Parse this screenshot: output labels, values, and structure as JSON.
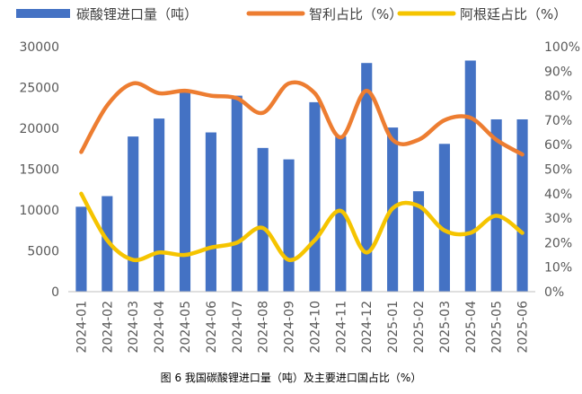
{
  "chart_data": {
    "type": "bar+line",
    "title": "",
    "caption": "图 6 我国碳酸锂进口量（吨）及主要进口国占比（%）",
    "categories": [
      "2024-01",
      "2024-02",
      "2024-03",
      "2024-04",
      "2024-05",
      "2024-06",
      "2024-07",
      "2024-08",
      "2024-09",
      "2024-10",
      "2024-11",
      "2024-12",
      "2025-01",
      "2025-02",
      "2025-03",
      "2025-04",
      "2025-05",
      "2025-06"
    ],
    "series": [
      {
        "name": "碳酸锂进口量（吨）",
        "type": "bar",
        "axis": "left",
        "color": "#4472C4",
        "values": [
          10400,
          11700,
          19000,
          21200,
          24600,
          19500,
          24000,
          17600,
          16200,
          23200,
          19000,
          28000,
          20100,
          12300,
          18100,
          28300,
          21100,
          21100
        ]
      },
      {
        "name": "智利占比（%）",
        "type": "line",
        "axis": "right",
        "color": "#ED7D31",
        "values": [
          57,
          76,
          85,
          81,
          82,
          80,
          79,
          73,
          85,
          81,
          63,
          82,
          62,
          62,
          70,
          71,
          62,
          56
        ]
      },
      {
        "name": "阿根廷占比（%）",
        "type": "line",
        "axis": "right",
        "color": "#F5C400",
        "values": [
          40,
          21,
          13,
          16,
          15,
          18,
          20,
          26,
          13,
          21,
          33,
          16,
          34,
          35,
          25,
          24,
          31,
          24
        ]
      }
    ],
    "y_left": {
      "min": 0,
      "max": 30000,
      "step": 5000,
      "ticks": [
        "0",
        "5000",
        "10000",
        "15000",
        "20000",
        "25000",
        "30000"
      ]
    },
    "y_right": {
      "min": 0,
      "max": 100,
      "step": 10,
      "ticks": [
        "0%",
        "10%",
        "20%",
        "30%",
        "40%",
        "50%",
        "60%",
        "70%",
        "80%",
        "90%",
        "100%"
      ]
    },
    "grid": false,
    "legend_position": "top"
  }
}
